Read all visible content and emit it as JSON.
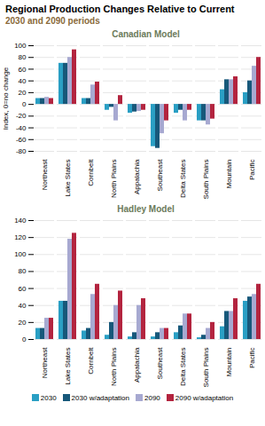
{
  "chart_data": [
    {
      "type": "bar",
      "title": "Regional Production Changes Relative to Current",
      "subtitle": "2030 and 2090 periods",
      "annotations": [
        "Canadian Model"
      ],
      "y_label": "Index, 0=no change",
      "categories": [
        "Northeast",
        "Lake States",
        "Cornbelt",
        "North Plains",
        "Appalachia",
        "Southeast",
        "Delta States",
        "South Plains",
        "Mountain",
        "Pacific"
      ],
      "series": [
        {
          "name": "2030",
          "color": "#2a9fc4",
          "values": [
            10,
            70,
            10,
            -10,
            -15,
            -72,
            -15,
            -28,
            25,
            20
          ]
        },
        {
          "name": "2030 w/adaptation",
          "color": "#17587a",
          "values": [
            10,
            70,
            10,
            -5,
            -13,
            -75,
            -10,
            -28,
            42,
            40
          ]
        },
        {
          "name": "2090",
          "color": "#a7a9d1",
          "values": [
            12,
            80,
            33,
            -28,
            -12,
            -50,
            -28,
            -35,
            42,
            65
          ]
        },
        {
          "name": "2090 w/adaptation",
          "color": "#b3243f",
          "values": [
            10,
            93,
            38,
            15,
            -10,
            -28,
            -10,
            -25,
            47,
            80
          ]
        }
      ],
      "ylim": [
        -80,
        100
      ],
      "yticks": [
        -80,
        -60,
        -40,
        -20,
        0,
        20,
        40,
        60,
        80,
        100
      ],
      "grid": true
    },
    {
      "type": "bar",
      "annotations": [
        "Hadley Model"
      ],
      "categories": [
        "Northeast",
        "Lake States",
        "Cornbelt",
        "North Plains",
        "Appalachia",
        "Southeast",
        "Delta States",
        "South Plains",
        "Mountain",
        "Pacific"
      ],
      "series": [
        {
          "name": "2030",
          "color": "#2a9fc4",
          "values": [
            13,
            45,
            10,
            5,
            3,
            3,
            8,
            2,
            15,
            45
          ]
        },
        {
          "name": "2030 w/adaptation",
          "color": "#17587a",
          "values": [
            13,
            45,
            13,
            20,
            8,
            8,
            16,
            5,
            33,
            50
          ]
        },
        {
          "name": "2090",
          "color": "#a7a9d1",
          "values": [
            25,
            118,
            53,
            40,
            40,
            13,
            30,
            13,
            33,
            53
          ]
        },
        {
          "name": "2090 w/adaptation",
          "color": "#b3243f",
          "values": [
            25,
            125,
            65,
            57,
            48,
            13,
            30,
            20,
            48,
            65
          ]
        }
      ],
      "ylim": [
        0,
        140
      ],
      "yticks": [
        0,
        20,
        40,
        60,
        80,
        100,
        120,
        140
      ],
      "grid": true,
      "legend": "bottom"
    }
  ]
}
